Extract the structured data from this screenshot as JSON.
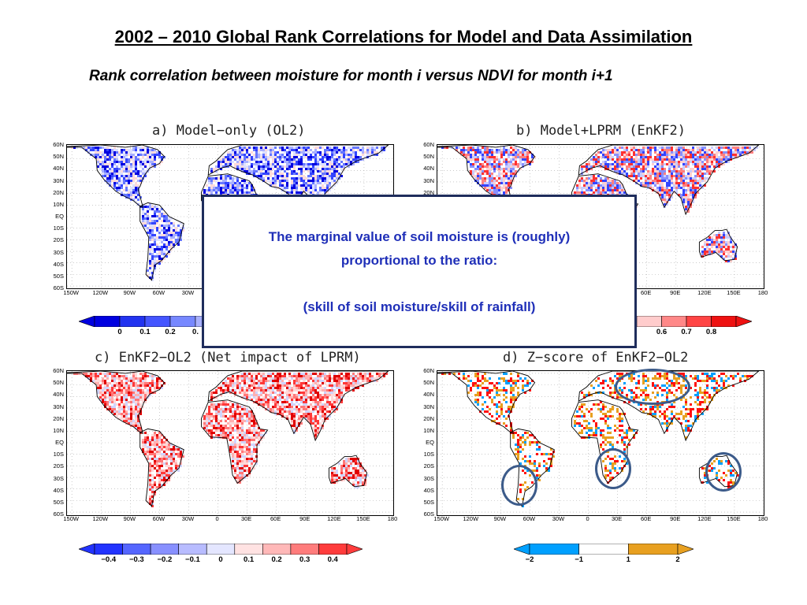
{
  "page": {
    "title": "2002 – 2010 Global Rank Correlations for Model and Data Assimilation",
    "subtitle": "Rank correlation between moisture for month i versus NDVI for month i+1"
  },
  "panels": [
    {
      "id": "a",
      "title": "a) Model−only (OL2)",
      "scheme": "blue"
    },
    {
      "id": "b",
      "title": "b) Model+LPRM (EnKF2)",
      "scheme": "mixed"
    },
    {
      "id": "c",
      "title": "c) EnKF2−OL2 (Net impact of LPRM)",
      "scheme": "red"
    },
    {
      "id": "d",
      "title": "d) Z−score of EnKF2−OL2",
      "scheme": "orange"
    }
  ],
  "axes": {
    "lat_labels": [
      "60N",
      "50N",
      "40N",
      "30N",
      "20N",
      "10N",
      "EQ",
      "10S",
      "20S",
      "30S",
      "40S",
      "50S",
      "60S"
    ],
    "lon_labels": [
      "150W",
      "120W",
      "90W",
      "60W",
      "30W",
      "0",
      "30E",
      "60E",
      "90E",
      "120E",
      "150E",
      "180"
    ]
  },
  "colorbars": {
    "top_left": {
      "labels": [
        "0",
        "0.1",
        "0.2",
        "0."
      ]
    },
    "top_right": {
      "labels": [
        "0.6",
        "0.7",
        "0.8"
      ]
    },
    "bottom_left": {
      "labels": [
        "−0.4",
        "−0.3",
        "−0.2",
        "−0.1",
        "0",
        "0.1",
        "0.2",
        "0.3",
        "0.4"
      ]
    },
    "bottom_right": {
      "labels": [
        "−2",
        "−1",
        "1",
        "2"
      ]
    }
  },
  "callout": {
    "line1": "The marginal value of soil moisture is (roughly)",
    "line2": "proportional to the ratio:",
    "line3": "(skill of soil moisture/skill of rainfall)"
  },
  "colors": {
    "callout_text": "#1f2fb8",
    "callout_border": "#1f2d5c",
    "ring": "#3c5b8a",
    "blue_scale": [
      "#0000e0",
      "#3344ff",
      "#6677ff",
      "#a8b0ff",
      "#dde0ff"
    ],
    "red_scale": [
      "#ffd8d8",
      "#ffb0b0",
      "#ff7878",
      "#ff3838",
      "#e00000"
    ],
    "z_scale": [
      "#0000e0",
      "#00a0ff",
      "#ffffff",
      "#e8a020",
      "#ff1010"
    ]
  }
}
